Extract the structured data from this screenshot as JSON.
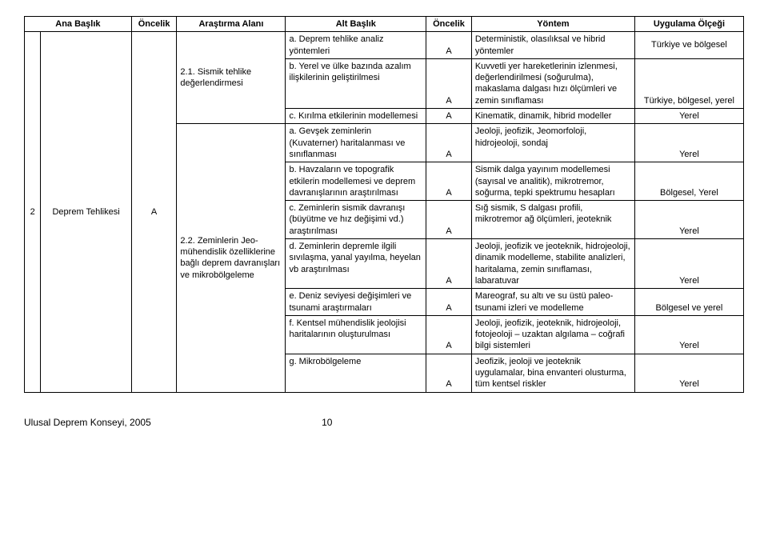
{
  "headers": {
    "ana_baslik": "Ana Başlık",
    "oncelik1": "Öncelik",
    "arastirma_alani": "Araştırma Alanı",
    "alt_baslik": "Alt Başlık",
    "oncelik2": "Öncelik",
    "yontem": "Yöntem",
    "uygulama_olcegi": "Uygulama Ölçeği"
  },
  "main": {
    "num": "2",
    "title": "Deprem Tehlikesi",
    "priority": "A"
  },
  "areas": {
    "a1": "2.1. Sismik tehlike değerlendirmesi",
    "a2": "2.2. Zeminlerin Jeo-mühendislik özelliklerine bağlı deprem davranışları ve mikrobölgeleme"
  },
  "rows": [
    {
      "sub": "a. Deprem tehlike analiz yöntemleri",
      "pri": "A",
      "method": "Deterministik, olasılıksal ve hibrid yöntemler",
      "scale": "Türkiye ve bölgesel"
    },
    {
      "sub": "b. Yerel ve ülke bazında azalım ilişkilerinin geliştirilmesi",
      "pri": "A",
      "method": "Kuvvetli yer hareketlerinin izlenmesi, değerlendirilmesi (soğurulma), makaslama dalgası hızı ölçümleri ve  zemin sınıflaması",
      "scale": "Türkiye, bölgesel, yerel"
    },
    {
      "sub": "c. Kırılma etkilerinin modellemesi",
      "pri": "A",
      "method": "Kinematik, dinamik, hibrid modeller",
      "scale": "Yerel"
    },
    {
      "sub": "a. Gevşek zeminlerin (Kuvaterner) haritalanması ve sınıflanması",
      "pri": "A",
      "method": "Jeoloji, jeofizik, Jeomorfoloji, hidrojeoloji, sondaj",
      "scale": "Yerel"
    },
    {
      "sub": "b. Havzaların ve topografik etkilerin modellemesi ve deprem davranışlarının araştırılması",
      "pri": "A",
      "method": "Sismik dalga yayınım modellemesi (sayısal ve analitik), mikrotremor, soğurma, tepki spektrumu hesapları",
      "scale": "Bölgesel, Yerel"
    },
    {
      "sub": "c. Zeminlerin sismik davranışı (büyütme ve hız değişimi vd.) araştırılması",
      "pri": "A",
      "method": "Sığ sismik, S dalgası profili, mikrotremor ağ ölçümleri, jeoteknik",
      "scale": "Yerel"
    },
    {
      "sub": "d. Zeminlerin depremle ilgili sıvılaşma, yanal yayılma, heyelan vb araştırılması",
      "pri": "A",
      "method": "Jeoloji, jeofizik ve jeoteknik, hidrojeoloji, dinamik modelleme, stabilite analizleri, haritalama, zemin sınıflaması, labaratuvar",
      "scale": "Yerel"
    },
    {
      "sub": "e. Deniz seviyesi değişimleri ve tsunami araştırmaları",
      "pri": "A",
      "method": "Mareograf, su altı ve su üstü paleo-tsunami izleri ve modelleme",
      "scale": "Bölgesel ve yerel"
    },
    {
      "sub": "f. Kentsel mühendislik jeolojisi haritalarının oluşturulması",
      "pri": "A",
      "method": "Jeoloji, jeofizik, jeoteknik, hidrojeoloji, fotojeoloji – uzaktan algılama – coğrafi bilgi sistemleri",
      "scale": "Yerel"
    },
    {
      "sub": "g. Mikrobölgeleme",
      "pri": "A",
      "method": "Jeofizik, jeoloji ve jeoteknik uygulamalar, bina envanteri olusturma, tüm kentsel riskler",
      "scale": "Yerel"
    }
  ],
  "footer": {
    "source": "Ulusal Deprem Konseyi, 2005",
    "page": "10"
  }
}
